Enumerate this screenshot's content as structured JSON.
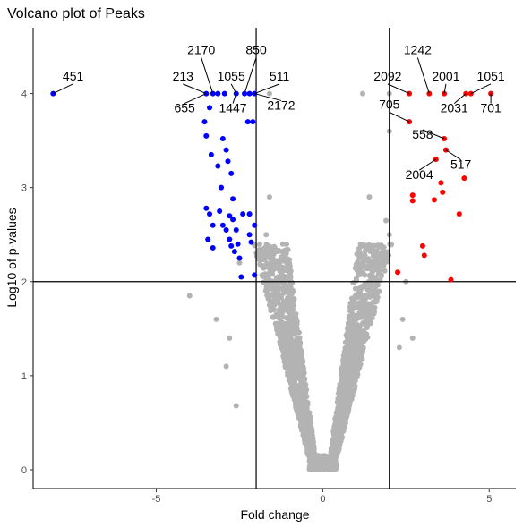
{
  "chart_data": {
    "type": "scatter",
    "title": "Volcano plot of Peaks",
    "xlabel": "Fold change",
    "ylabel": "Log10 of p-values",
    "xlim": [
      -8.7,
      5.8
    ],
    "ylim": [
      -0.2,
      4.7
    ],
    "xticks": [
      -5,
      0,
      5
    ],
    "yticks": [
      0,
      1,
      2,
      3,
      4
    ],
    "grid": false,
    "legend": "none",
    "thresholds": {
      "x": [
        -2,
        2
      ],
      "y": [
        2
      ]
    },
    "colors": {
      "down": "#0000ff",
      "up": "#ff0000",
      "ns": "#b3b3b3",
      "axis": "#000000"
    },
    "series": [
      {
        "group": "down",
        "points": [
          [
            -8.1,
            4.0
          ],
          [
            -3.5,
            4.0
          ],
          [
            -3.3,
            4.0
          ],
          [
            -3.15,
            4.0
          ],
          [
            -2.95,
            4.0
          ],
          [
            -2.6,
            4.0
          ],
          [
            -2.35,
            4.0
          ],
          [
            -2.2,
            4.0
          ],
          [
            -2.05,
            4.0
          ],
          [
            -3.55,
            3.7
          ],
          [
            -3.4,
            3.85
          ],
          [
            -3.5,
            3.55
          ],
          [
            -3.35,
            3.35
          ],
          [
            -3.0,
            3.52
          ],
          [
            -2.9,
            3.4
          ],
          [
            -2.85,
            3.28
          ],
          [
            -3.15,
            3.23
          ],
          [
            -2.75,
            3.15
          ],
          [
            -2.25,
            3.7
          ],
          [
            -2.1,
            3.7
          ],
          [
            -3.05,
            3.0
          ],
          [
            -2.7,
            2.88
          ],
          [
            -3.5,
            2.78
          ],
          [
            -3.4,
            2.72
          ],
          [
            -3.1,
            2.75
          ],
          [
            -2.8,
            2.7
          ],
          [
            -2.7,
            2.66
          ],
          [
            -2.4,
            2.72
          ],
          [
            -2.2,
            2.72
          ],
          [
            -3.3,
            2.6
          ],
          [
            -3.0,
            2.6
          ],
          [
            -2.9,
            2.55
          ],
          [
            -2.6,
            2.55
          ],
          [
            -3.45,
            2.45
          ],
          [
            -2.8,
            2.45
          ],
          [
            -2.55,
            2.4
          ],
          [
            -2.2,
            2.5
          ],
          [
            -2.15,
            2.42
          ],
          [
            -3.3,
            2.36
          ],
          [
            -2.75,
            2.38
          ],
          [
            -2.65,
            2.32
          ],
          [
            -2.5,
            2.25
          ],
          [
            -2.45,
            2.05
          ],
          [
            -2.05,
            2.07
          ],
          [
            -2.05,
            2.6
          ]
        ]
      },
      {
        "group": "up",
        "points": [
          [
            2.6,
            4.0
          ],
          [
            3.2,
            4.0
          ],
          [
            3.65,
            4.0
          ],
          [
            4.3,
            4.0
          ],
          [
            4.45,
            4.0
          ],
          [
            5.05,
            4.0
          ],
          [
            2.6,
            3.7
          ],
          [
            3.65,
            3.52
          ],
          [
            3.7,
            3.4
          ],
          [
            3.4,
            3.3
          ],
          [
            3.55,
            3.05
          ],
          [
            3.6,
            2.95
          ],
          [
            4.25,
            3.1
          ],
          [
            3.35,
            2.87
          ],
          [
            2.7,
            2.92
          ],
          [
            2.7,
            2.86
          ],
          [
            4.1,
            2.72
          ],
          [
            3.0,
            2.38
          ],
          [
            3.05,
            2.28
          ],
          [
            2.25,
            2.1
          ],
          [
            3.85,
            2.02
          ]
        ]
      }
    ],
    "annotations": [
      {
        "text": "451",
        "x": -8.1,
        "y": 4.0,
        "lx": -7.5,
        "ly": 4.14
      },
      {
        "text": "213",
        "x": -3.5,
        "y": 4.0,
        "lx": -4.2,
        "ly": 4.14
      },
      {
        "text": "655",
        "x": -3.5,
        "y": 4.0,
        "lx": -4.15,
        "ly": 3.8
      },
      {
        "text": "2170",
        "x": -3.3,
        "y": 4.0,
        "lx": -3.65,
        "ly": 4.42
      },
      {
        "text": "1055",
        "x": -2.6,
        "y": 4.0,
        "lx": -2.75,
        "ly": 4.14
      },
      {
        "text": "1447",
        "x": -2.6,
        "y": 4.0,
        "lx": -2.7,
        "ly": 3.8
      },
      {
        "text": "850",
        "x": -2.35,
        "y": 4.0,
        "lx": -2.0,
        "ly": 4.42
      },
      {
        "text": "511",
        "x": -2.05,
        "y": 4.0,
        "lx": -1.3,
        "ly": 4.14
      },
      {
        "text": "2172",
        "x": -2.05,
        "y": 4.0,
        "lx": -1.25,
        "ly": 3.83
      },
      {
        "text": "1242",
        "x": 3.2,
        "y": 4.0,
        "lx": 2.85,
        "ly": 4.42
      },
      {
        "text": "2092",
        "x": 2.6,
        "y": 4.0,
        "lx": 1.95,
        "ly": 4.14
      },
      {
        "text": "2001",
        "x": 3.65,
        "y": 4.0,
        "lx": 3.7,
        "ly": 4.14
      },
      {
        "text": "1051",
        "x": 4.45,
        "y": 4.0,
        "lx": 5.05,
        "ly": 4.14
      },
      {
        "text": "2031",
        "x": 4.3,
        "y": 4.0,
        "lx": 3.95,
        "ly": 3.8
      },
      {
        "text": "701",
        "x": 5.05,
        "y": 4.0,
        "lx": 5.05,
        "ly": 3.8
      },
      {
        "text": "705",
        "x": 2.6,
        "y": 3.7,
        "lx": 2.0,
        "ly": 3.84
      },
      {
        "text": "558",
        "x": 3.65,
        "y": 3.52,
        "lx": 3.0,
        "ly": 3.52
      },
      {
        "text": "517",
        "x": 3.7,
        "y": 3.4,
        "lx": 4.15,
        "ly": 3.2
      },
      {
        "text": "2004",
        "x": 3.4,
        "y": 3.3,
        "lx": 2.9,
        "ly": 3.09
      }
    ],
    "ns_points_note": ""
  }
}
